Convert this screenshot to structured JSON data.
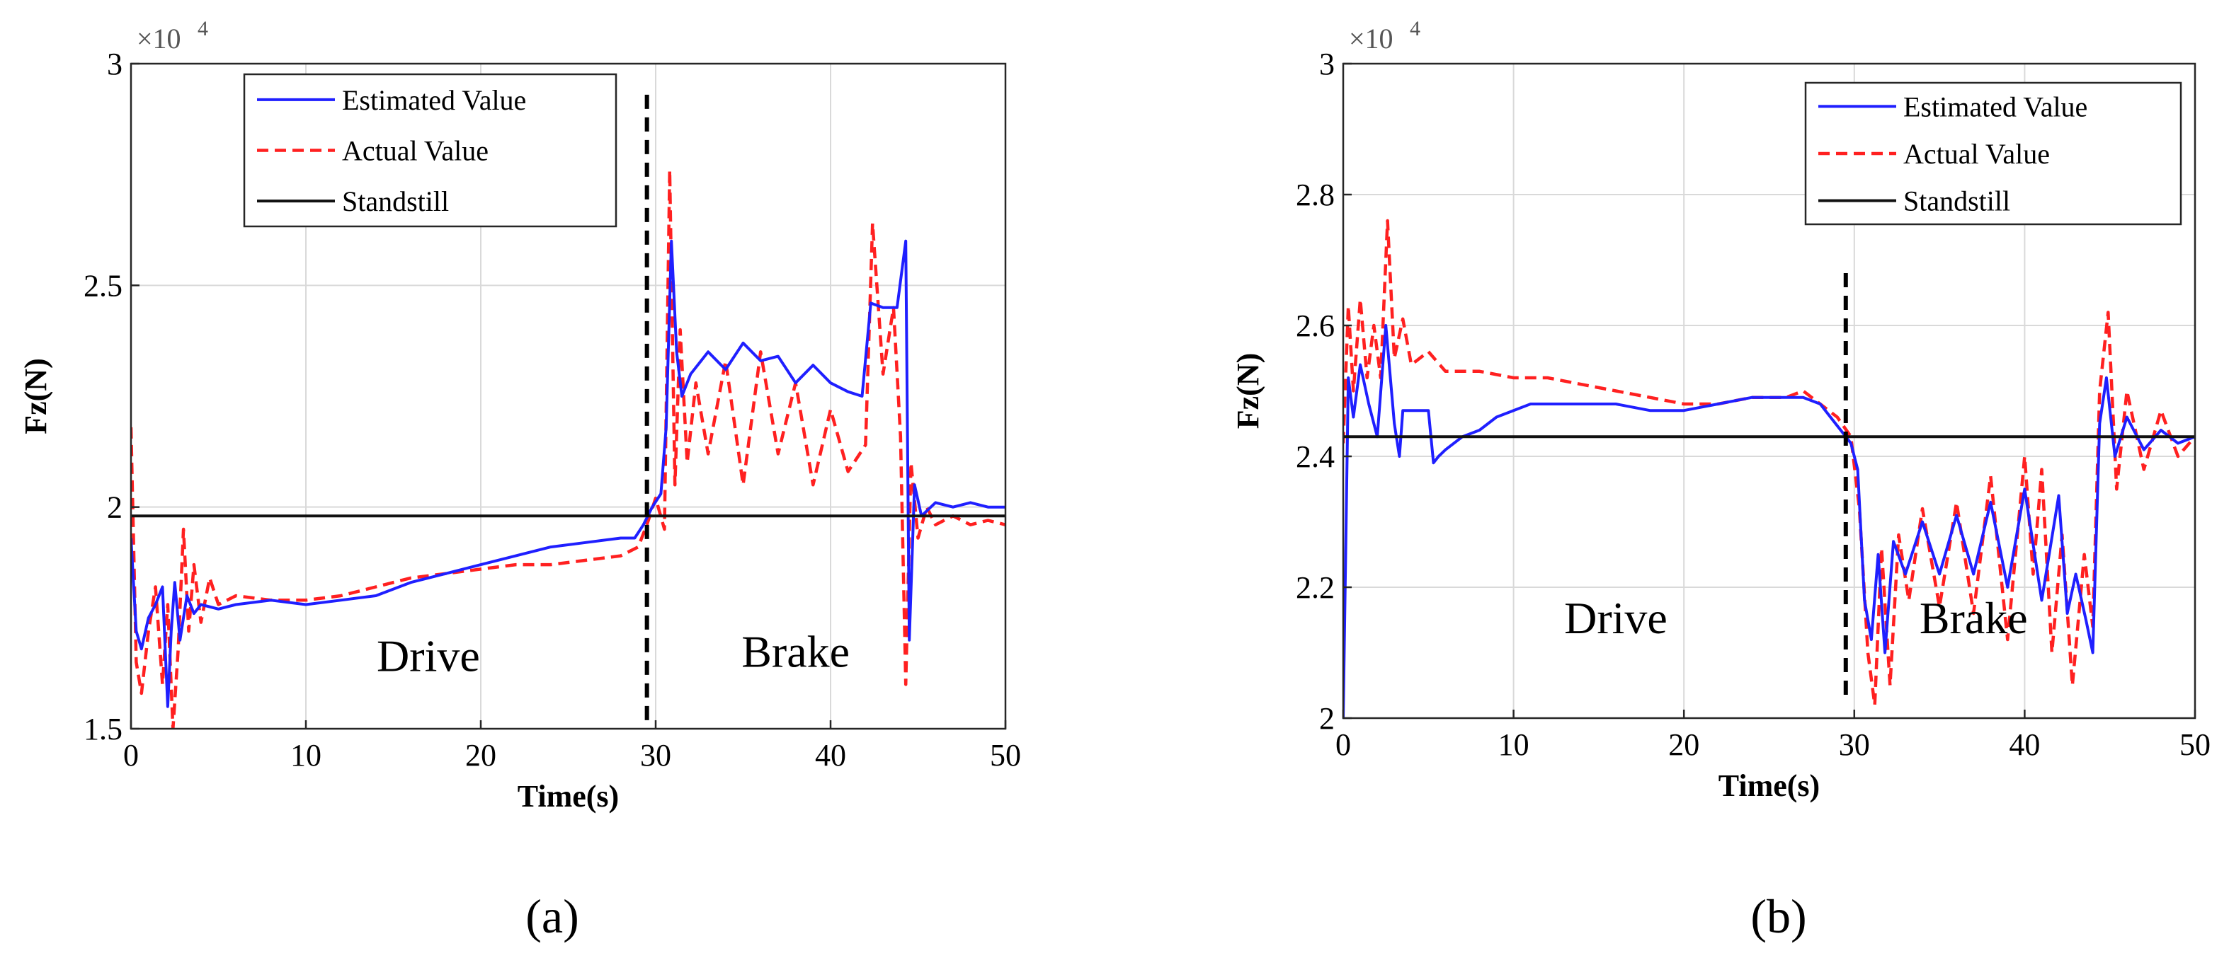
{
  "colors": {
    "estimated": "#1f1fff",
    "actual": "#ff2020",
    "standstill": "#111111",
    "divider": "#000000",
    "grid": "#d9d9d9",
    "axis": "#262626"
  },
  "chart_data": [
    {
      "type": "line",
      "caption": "(a)",
      "xlabel": "Time(s)",
      "ylabel": "Fz(N)",
      "exponent_base": "×10",
      "exponent_power": "4",
      "xlim": [
        0,
        50
      ],
      "ylim": [
        1.5,
        3.0
      ],
      "xticks": [
        0,
        10,
        20,
        30,
        40,
        50
      ],
      "xtick_labels": [
        "0",
        "10",
        "20",
        "30",
        "40",
        "50"
      ],
      "yticks": [
        1.5,
        2.0,
        2.5,
        3.0
      ],
      "ytick_labels": [
        "1.5",
        "2",
        "2.5",
        "3"
      ],
      "grid": true,
      "legend_position": "top-center",
      "legend": [
        {
          "label": "Estimated Value",
          "style": "solid",
          "color": "#1f1fff"
        },
        {
          "label": "Actual Value",
          "style": "dashed",
          "color": "#ff2020"
        },
        {
          "label": "Standstill",
          "style": "solid",
          "color": "#111111"
        }
      ],
      "standstill": 1.98,
      "divider_x": 29.5,
      "divider_y": [
        1.5,
        2.93
      ],
      "annotations": [
        {
          "text": "Drive",
          "x": 17,
          "y": 1.63
        },
        {
          "text": "Brake",
          "x": 38,
          "y": 1.64
        }
      ],
      "series": [
        {
          "name": "Estimated Value",
          "x": [
            0,
            0.3,
            0.6,
            1.0,
            1.4,
            1.8,
            2.1,
            2.3,
            2.5,
            2.8,
            3.2,
            3.6,
            4.0,
            5.0,
            6.0,
            8.0,
            10,
            12,
            14,
            16,
            18,
            20,
            22,
            24,
            26,
            28,
            28.8,
            29.3,
            29.8,
            30.3,
            30.6,
            30.9,
            31.2,
            31.5,
            32,
            33,
            34,
            35,
            36,
            37,
            38,
            39,
            40,
            41,
            41.8,
            42.3,
            43,
            43.8,
            44.3,
            44.5,
            44.8,
            45.2,
            46,
            47,
            48,
            49,
            50
          ],
          "y": [
            1.93,
            1.72,
            1.68,
            1.75,
            1.78,
            1.82,
            1.55,
            1.72,
            1.83,
            1.7,
            1.8,
            1.76,
            1.78,
            1.77,
            1.78,
            1.79,
            1.78,
            1.79,
            1.8,
            1.83,
            1.85,
            1.87,
            1.89,
            1.91,
            1.92,
            1.93,
            1.93,
            1.96,
            2.0,
            2.03,
            2.18,
            2.6,
            2.35,
            2.25,
            2.3,
            2.35,
            2.31,
            2.37,
            2.33,
            2.34,
            2.28,
            2.32,
            2.28,
            2.26,
            2.25,
            2.46,
            2.45,
            2.45,
            2.6,
            1.7,
            2.05,
            1.98,
            2.01,
            2.0,
            2.01,
            2.0,
            2.0
          ]
        },
        {
          "name": "Actual Value",
          "x": [
            0,
            0.3,
            0.6,
            1.0,
            1.4,
            1.8,
            2.1,
            2.4,
            2.7,
            3.0,
            3.3,
            3.6,
            4.0,
            4.5,
            5.0,
            6.0,
            8.0,
            10,
            12,
            14,
            16,
            18,
            20,
            22,
            24,
            26,
            28,
            29,
            29.5,
            30,
            30.5,
            30.8,
            31.1,
            31.4,
            31.8,
            32.3,
            33,
            34,
            35,
            36,
            37,
            38,
            39,
            40,
            41,
            42,
            42.4,
            43,
            43.6,
            44.0,
            44.3,
            44.6,
            45,
            45.5,
            46,
            47,
            48,
            49,
            50
          ],
          "y": [
            2.18,
            1.65,
            1.58,
            1.72,
            1.82,
            1.6,
            1.78,
            1.5,
            1.68,
            1.95,
            1.72,
            1.87,
            1.74,
            1.84,
            1.78,
            1.8,
            1.79,
            1.79,
            1.8,
            1.82,
            1.84,
            1.85,
            1.86,
            1.87,
            1.87,
            1.88,
            1.89,
            1.91,
            1.96,
            2.02,
            1.95,
            2.76,
            2.05,
            2.4,
            2.1,
            2.28,
            2.12,
            2.33,
            2.05,
            2.35,
            2.12,
            2.28,
            2.05,
            2.22,
            2.08,
            2.14,
            2.64,
            2.3,
            2.45,
            2.16,
            1.6,
            2.1,
            1.93,
            2.0,
            1.96,
            1.98,
            1.96,
            1.97,
            1.96
          ]
        },
        {
          "name": "Standstill",
          "x": [
            0,
            50
          ],
          "y": [
            1.98,
            1.98
          ]
        }
      ]
    },
    {
      "type": "line",
      "caption": "(b)",
      "xlabel": "Time(s)",
      "ylabel": "Fz(N)",
      "exponent_base": "×10",
      "exponent_power": "4",
      "xlim": [
        0,
        50
      ],
      "ylim": [
        2.0,
        3.0
      ],
      "xticks": [
        0,
        10,
        20,
        30,
        40,
        50
      ],
      "xtick_labels": [
        "0",
        "10",
        "20",
        "30",
        "40",
        "50"
      ],
      "yticks": [
        2.0,
        2.2,
        2.4,
        2.6,
        2.8,
        3.0
      ],
      "ytick_labels": [
        "2",
        "2.2",
        "2.4",
        "2.6",
        "2.8",
        "3"
      ],
      "grid": true,
      "legend_position": "top-right",
      "legend": [
        {
          "label": "Estimated Value",
          "style": "solid",
          "color": "#1f1fff"
        },
        {
          "label": "Actual Value",
          "style": "dashed",
          "color": "#ff2020"
        },
        {
          "label": "Standstill",
          "style": "solid",
          "color": "#111111"
        }
      ],
      "standstill": 2.43,
      "divider_x": 29.5,
      "divider_y": [
        2.03,
        2.68
      ],
      "annotations": [
        {
          "text": "Drive",
          "x": 16,
          "y": 2.13
        },
        {
          "text": "Brake",
          "x": 37,
          "y": 2.13
        }
      ],
      "series": [
        {
          "name": "Estimated Value",
          "x": [
            0,
            0.3,
            0.6,
            1.0,
            1.5,
            2.0,
            2.5,
            3.0,
            3.3,
            3.5,
            4.0,
            5.0,
            5.3,
            5.6,
            6.0,
            7.0,
            8.0,
            9.0,
            10,
            11,
            12,
            14,
            16,
            18,
            20,
            22,
            24,
            26,
            27,
            28,
            28.6,
            29.2,
            29.8,
            30.2,
            30.6,
            31.0,
            31.4,
            31.8,
            32.3,
            33,
            34,
            35,
            36,
            37,
            38,
            39,
            40,
            41,
            42,
            42.5,
            43,
            43.6,
            44.0,
            44.4,
            44.8,
            45.3,
            46,
            47,
            48,
            49,
            50
          ],
          "y": [
            2.0,
            2.52,
            2.46,
            2.54,
            2.48,
            2.43,
            2.6,
            2.45,
            2.4,
            2.47,
            2.47,
            2.47,
            2.39,
            2.4,
            2.41,
            2.43,
            2.44,
            2.46,
            2.47,
            2.48,
            2.48,
            2.48,
            2.48,
            2.47,
            2.47,
            2.48,
            2.49,
            2.49,
            2.49,
            2.48,
            2.46,
            2.44,
            2.42,
            2.38,
            2.18,
            2.12,
            2.25,
            2.1,
            2.27,
            2.22,
            2.3,
            2.22,
            2.31,
            2.22,
            2.33,
            2.2,
            2.35,
            2.18,
            2.34,
            2.16,
            2.22,
            2.15,
            2.1,
            2.45,
            2.52,
            2.4,
            2.46,
            2.41,
            2.44,
            2.42,
            2.43
          ]
        },
        {
          "name": "Actual Value",
          "x": [
            0,
            0.3,
            0.6,
            1.0,
            1.4,
            1.8,
            2.2,
            2.6,
            3.0,
            3.5,
            4.0,
            5.0,
            6.0,
            8.0,
            10,
            12,
            14,
            16,
            18,
            20,
            22,
            24,
            26,
            27,
            28,
            29,
            29.8,
            30.3,
            30.8,
            31.2,
            31.6,
            32.1,
            32.6,
            33.2,
            34,
            35,
            36,
            37,
            38,
            39,
            40,
            40.5,
            41,
            41.6,
            42.2,
            42.8,
            43.5,
            44.0,
            44.4,
            44.9,
            45.4,
            46,
            47,
            48,
            49,
            50
          ],
          "y": [
            2.42,
            2.63,
            2.5,
            2.64,
            2.52,
            2.6,
            2.52,
            2.76,
            2.55,
            2.61,
            2.54,
            2.56,
            2.53,
            2.53,
            2.52,
            2.52,
            2.51,
            2.5,
            2.49,
            2.48,
            2.48,
            2.49,
            2.49,
            2.5,
            2.48,
            2.46,
            2.43,
            2.32,
            2.1,
            2.02,
            2.26,
            2.05,
            2.28,
            2.18,
            2.32,
            2.17,
            2.33,
            2.16,
            2.37,
            2.12,
            2.4,
            2.22,
            2.38,
            2.1,
            2.28,
            2.05,
            2.25,
            2.14,
            2.5,
            2.62,
            2.35,
            2.5,
            2.38,
            2.47,
            2.4,
            2.43
          ]
        },
        {
          "name": "Standstill",
          "x": [
            0,
            50
          ],
          "y": [
            2.43,
            2.43
          ]
        }
      ]
    }
  ]
}
